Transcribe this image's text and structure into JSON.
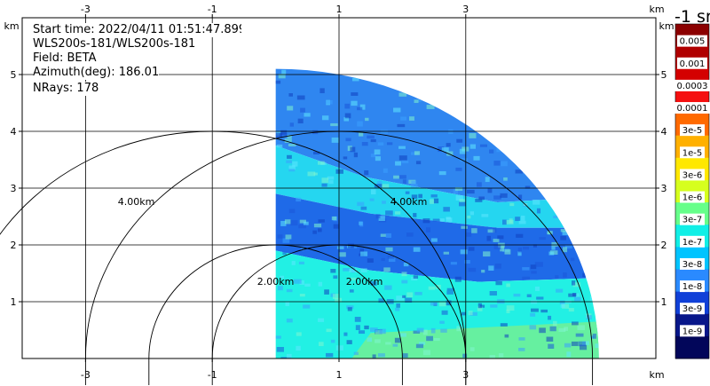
{
  "header": {
    "start_time": "Start time: 2022/04/11 01:51:47.899",
    "site": "WLS200s-181/WLS200s-181",
    "field": "Field: BETA",
    "azimuth": "Azimuth(deg): 186.01",
    "nrays": "NRays: 178"
  },
  "chart_data": {
    "type": "heatmap",
    "title": "",
    "xlabel": "km",
    "ylabel": "km",
    "xlim": [
      -4.0,
      6.0
    ],
    "ylim": [
      0.0,
      6.0
    ],
    "x_ticks": [
      -3,
      -1,
      1,
      3
    ],
    "y_ticks": [
      1,
      2,
      3,
      4,
      5
    ],
    "x_tick_labels": [
      "-3",
      "-1",
      "1",
      "3"
    ],
    "y_tick_labels": [
      "1",
      "2",
      "3",
      "4",
      "5"
    ],
    "grid": true,
    "range_rings": [
      {
        "center_x": -1.0,
        "center_y": 0.0,
        "radius_km": 4.0,
        "label": "4.00km"
      },
      {
        "center_x": 1.0,
        "center_y": 0.0,
        "radius_km": 4.0,
        "label": "4.00km"
      },
      {
        "center_x": 0.0,
        "center_y": 0.0,
        "radius_km": 2.0,
        "label": "2.00km"
      },
      {
        "center_x": 1.0,
        "center_y": 0.0,
        "radius_km": 2.0,
        "label": "2.00km"
      }
    ],
    "scan_sector": {
      "origin_x": 0.0,
      "origin_y": 0.0,
      "max_range_km": 5.1,
      "start_azimuth_deg": 0,
      "end_azimuth_deg": 90
    },
    "colorbar": {
      "title": "-1 sr",
      "labels": [
        "0.005",
        "0.001",
        "0.0003",
        "0.0001",
        "3e-5",
        "1e-5",
        "3e-6",
        "1e-6",
        "3e-7",
        "1e-7",
        "3e-8",
        "1e-8",
        "3e-9",
        "1e-9"
      ],
      "colors": [
        "#8b0000",
        "#b00000",
        "#d40000",
        "#f51010",
        "#ff6a00",
        "#ffb000",
        "#ffe800",
        "#d6ff1e",
        "#66ff8a",
        "#11efe6",
        "#00c4ff",
        "#2a8aff",
        "#1040d8",
        "#08178a",
        "#02065a"
      ]
    },
    "bands": [
      {
        "description": "upper band",
        "value_label": "1e-8",
        "color": "#2f86f0"
      },
      {
        "description": "middle band",
        "value_label": "1e-7",
        "color": "#25d6f0"
      },
      {
        "description": "lower dark band",
        "value_label": "1e-8",
        "color": "#1f6ae8"
      },
      {
        "description": "near-ground layer",
        "value_label": "3e-7",
        "color": "#22f0e4"
      },
      {
        "description": "surface",
        "value_label": "1e-6",
        "color": "#66f0a0"
      }
    ]
  }
}
